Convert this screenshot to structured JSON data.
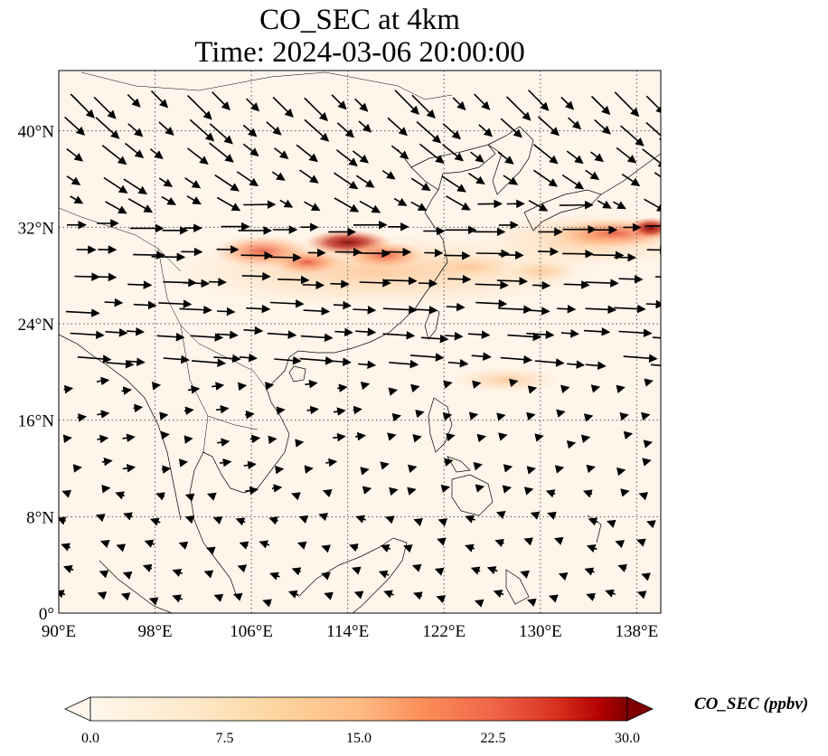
{
  "title": {
    "line1": "CO_SEC at 4km",
    "line2": "Time: 2024-03-06 20:00:00"
  },
  "map": {
    "lon_range": [
      90,
      140
    ],
    "lat_range": [
      0,
      45
    ],
    "lon_ticks": [
      "90°E",
      "98°E",
      "106°E",
      "114°E",
      "122°E",
      "130°E",
      "138°E"
    ],
    "lat_ticks": [
      "0°",
      "8°N",
      "16°N",
      "24°N",
      "32°N",
      "40°N"
    ],
    "gridlines": "dotted",
    "wind_vectors": "black arrows",
    "plume": {
      "location": "band near 28–32°N from 102°E to 140°E",
      "peak_value_ppbv": 28
    }
  },
  "colorbar": {
    "label": "CO_SEC (ppbv)",
    "ticks": [
      "0.0",
      "7.5",
      "15.0",
      "22.5",
      "30.0"
    ],
    "range": [
      0,
      30
    ],
    "colormap": "OrRd",
    "extend": "both"
  },
  "colors": {
    "background": "#fff5eb",
    "low": "#fff7ec",
    "high": "#7f0000"
  }
}
